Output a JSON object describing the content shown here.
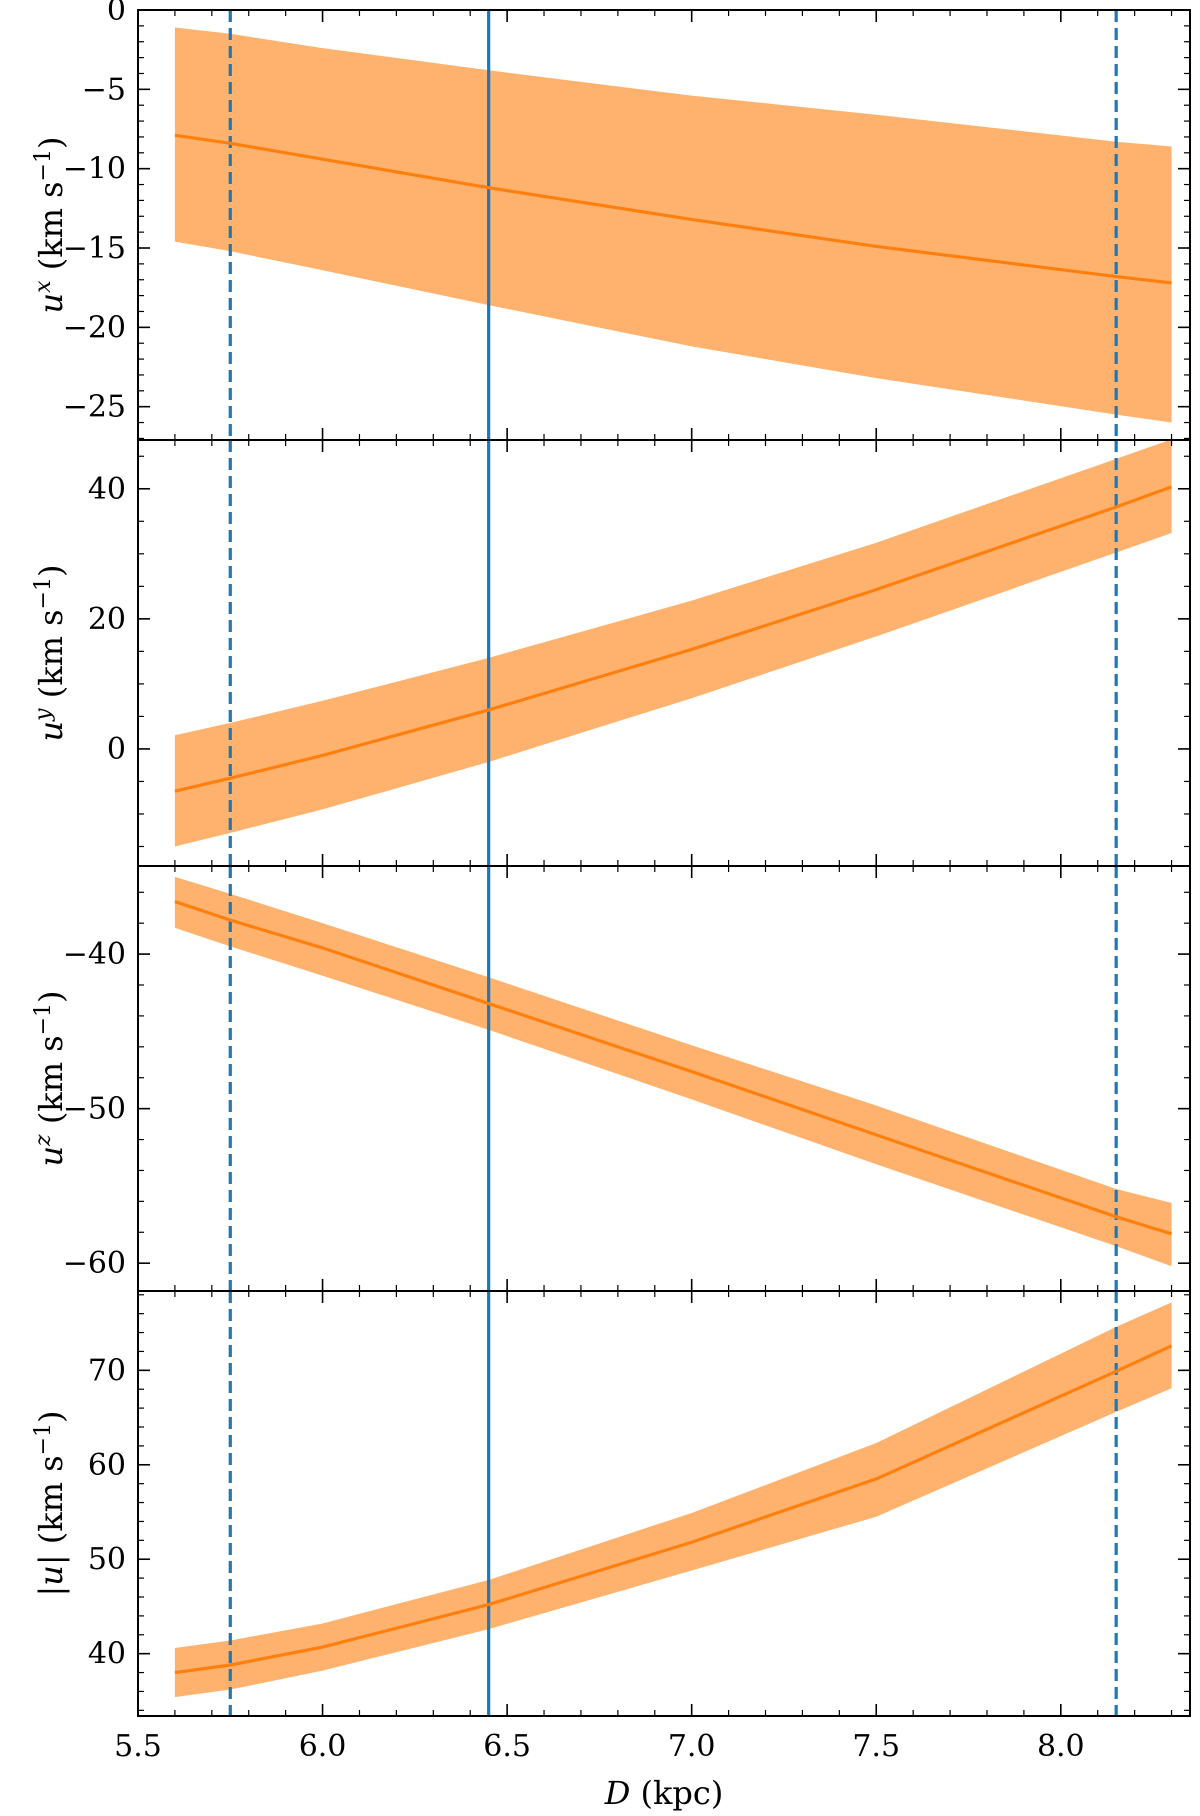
{
  "chart_data": {
    "type": "line",
    "shared_x": {
      "label_italic": "D",
      "label_rest": " (kpc)",
      "lim": [
        5.5,
        8.35
      ],
      "major_ticks": [
        5.5,
        6.0,
        6.5,
        7.0,
        7.5,
        8.0
      ],
      "tick_labels": [
        "5.5",
        "6.0",
        "6.5",
        "7.0",
        "7.5",
        "8.0"
      ],
      "minor_step": 0.1
    },
    "reference_lines": [
      {
        "x": 5.75,
        "style": "dashed",
        "color": "#1f77b4"
      },
      {
        "x": 6.45,
        "style": "solid",
        "color": "#1f77b4"
      },
      {
        "x": 8.15,
        "style": "dashed",
        "color": "#1f77b4"
      }
    ],
    "series_style": {
      "line_color": "#ff7f0e",
      "band_color": "#ffb26e"
    },
    "panels": [
      {
        "ylabel_var": "u",
        "ylabel_sup": "x",
        "ylabel_units": " (km s",
        "ylabel_units_sup": "−1",
        "ylabel_close": ")",
        "ylim": [
          -27.1,
          0
        ],
        "major_ticks": [
          0,
          -5,
          -10,
          -15,
          -20,
          -25
        ],
        "tick_labels": [
          "0",
          "−5",
          "−10",
          "−15",
          "−20",
          "−25"
        ],
        "minor_step": 1,
        "x": [
          5.6,
          5.75,
          6.0,
          6.45,
          7.0,
          7.5,
          8.15,
          8.3
        ],
        "y": [
          -7.9,
          -8.4,
          -9.4,
          -11.2,
          -13.2,
          -14.9,
          -16.8,
          -17.2
        ],
        "y_lower": [
          -14.6,
          -15.2,
          -16.4,
          -18.6,
          -21.2,
          -23.2,
          -25.5,
          -26.0
        ],
        "y_upper": [
          -1.1,
          -1.5,
          -2.4,
          -3.8,
          -5.4,
          -6.6,
          -8.3,
          -8.6
        ]
      },
      {
        "ylabel_var": "u",
        "ylabel_sup": "y",
        "ylabel_units": " (km s",
        "ylabel_units_sup": "−1",
        "ylabel_close": ")",
        "ylim": [
          -18,
          47.5
        ],
        "major_ticks": [
          0,
          20,
          40
        ],
        "tick_labels": [
          "0",
          "20",
          "40"
        ],
        "minor_step": 5,
        "x": [
          5.6,
          5.75,
          6.0,
          6.45,
          7.0,
          7.5,
          8.15,
          8.3
        ],
        "y": [
          -6.5,
          -4.5,
          -1.0,
          6.0,
          15.3,
          24.5,
          37.2,
          40.3
        ],
        "y_lower": [
          -15.0,
          -12.9,
          -9.3,
          -2.0,
          7.8,
          17.3,
          30.2,
          33.2
        ],
        "y_upper": [
          2.1,
          4.0,
          7.4,
          14.0,
          22.8,
          31.7,
          44.6,
          47.6
        ]
      },
      {
        "ylabel_var": "u",
        "ylabel_sup": "z",
        "ylabel_units": " (km s",
        "ylabel_units_sup": "−1",
        "ylabel_close": ")",
        "ylim": [
          -61.8,
          -34.3
        ],
        "major_ticks": [
          -40,
          -50,
          -60
        ],
        "tick_labels": [
          "−40",
          "−50",
          "−60"
        ],
        "minor_step": 2,
        "x": [
          5.6,
          5.75,
          6.0,
          6.45,
          7.0,
          7.5,
          8.15,
          8.3
        ],
        "y": [
          -36.6,
          -37.8,
          -39.6,
          -43.2,
          -47.6,
          -51.7,
          -57.0,
          -58.1
        ],
        "y_lower": [
          -38.3,
          -39.5,
          -41.4,
          -44.9,
          -49.4,
          -53.6,
          -58.9,
          -60.2
        ],
        "y_upper": [
          -35.0,
          -36.1,
          -38.0,
          -41.5,
          -45.9,
          -49.8,
          -55.2,
          -56.1
        ]
      },
      {
        "ylabel_var": "|u|",
        "ylabel_sup": "",
        "ylabel_units": " (km s",
        "ylabel_units_sup": "−1",
        "ylabel_close": ")",
        "ylim": [
          33.4,
          78.4
        ],
        "major_ticks": [
          40,
          50,
          60,
          70
        ],
        "tick_labels": [
          "40",
          "50",
          "60",
          "70"
        ],
        "minor_step": 2,
        "x": [
          5.6,
          5.75,
          6.0,
          6.45,
          7.0,
          7.5,
          8.15,
          8.3
        ],
        "y": [
          38.0,
          38.8,
          40.7,
          45.2,
          51.8,
          58.5,
          69.9,
          72.6
        ],
        "y_lower": [
          35.4,
          36.2,
          38.2,
          42.6,
          48.8,
          54.5,
          65.6,
          68.1
        ],
        "y_upper": [
          40.6,
          41.4,
          43.2,
          47.8,
          54.9,
          62.3,
          74.6,
          77.2
        ]
      }
    ]
  }
}
